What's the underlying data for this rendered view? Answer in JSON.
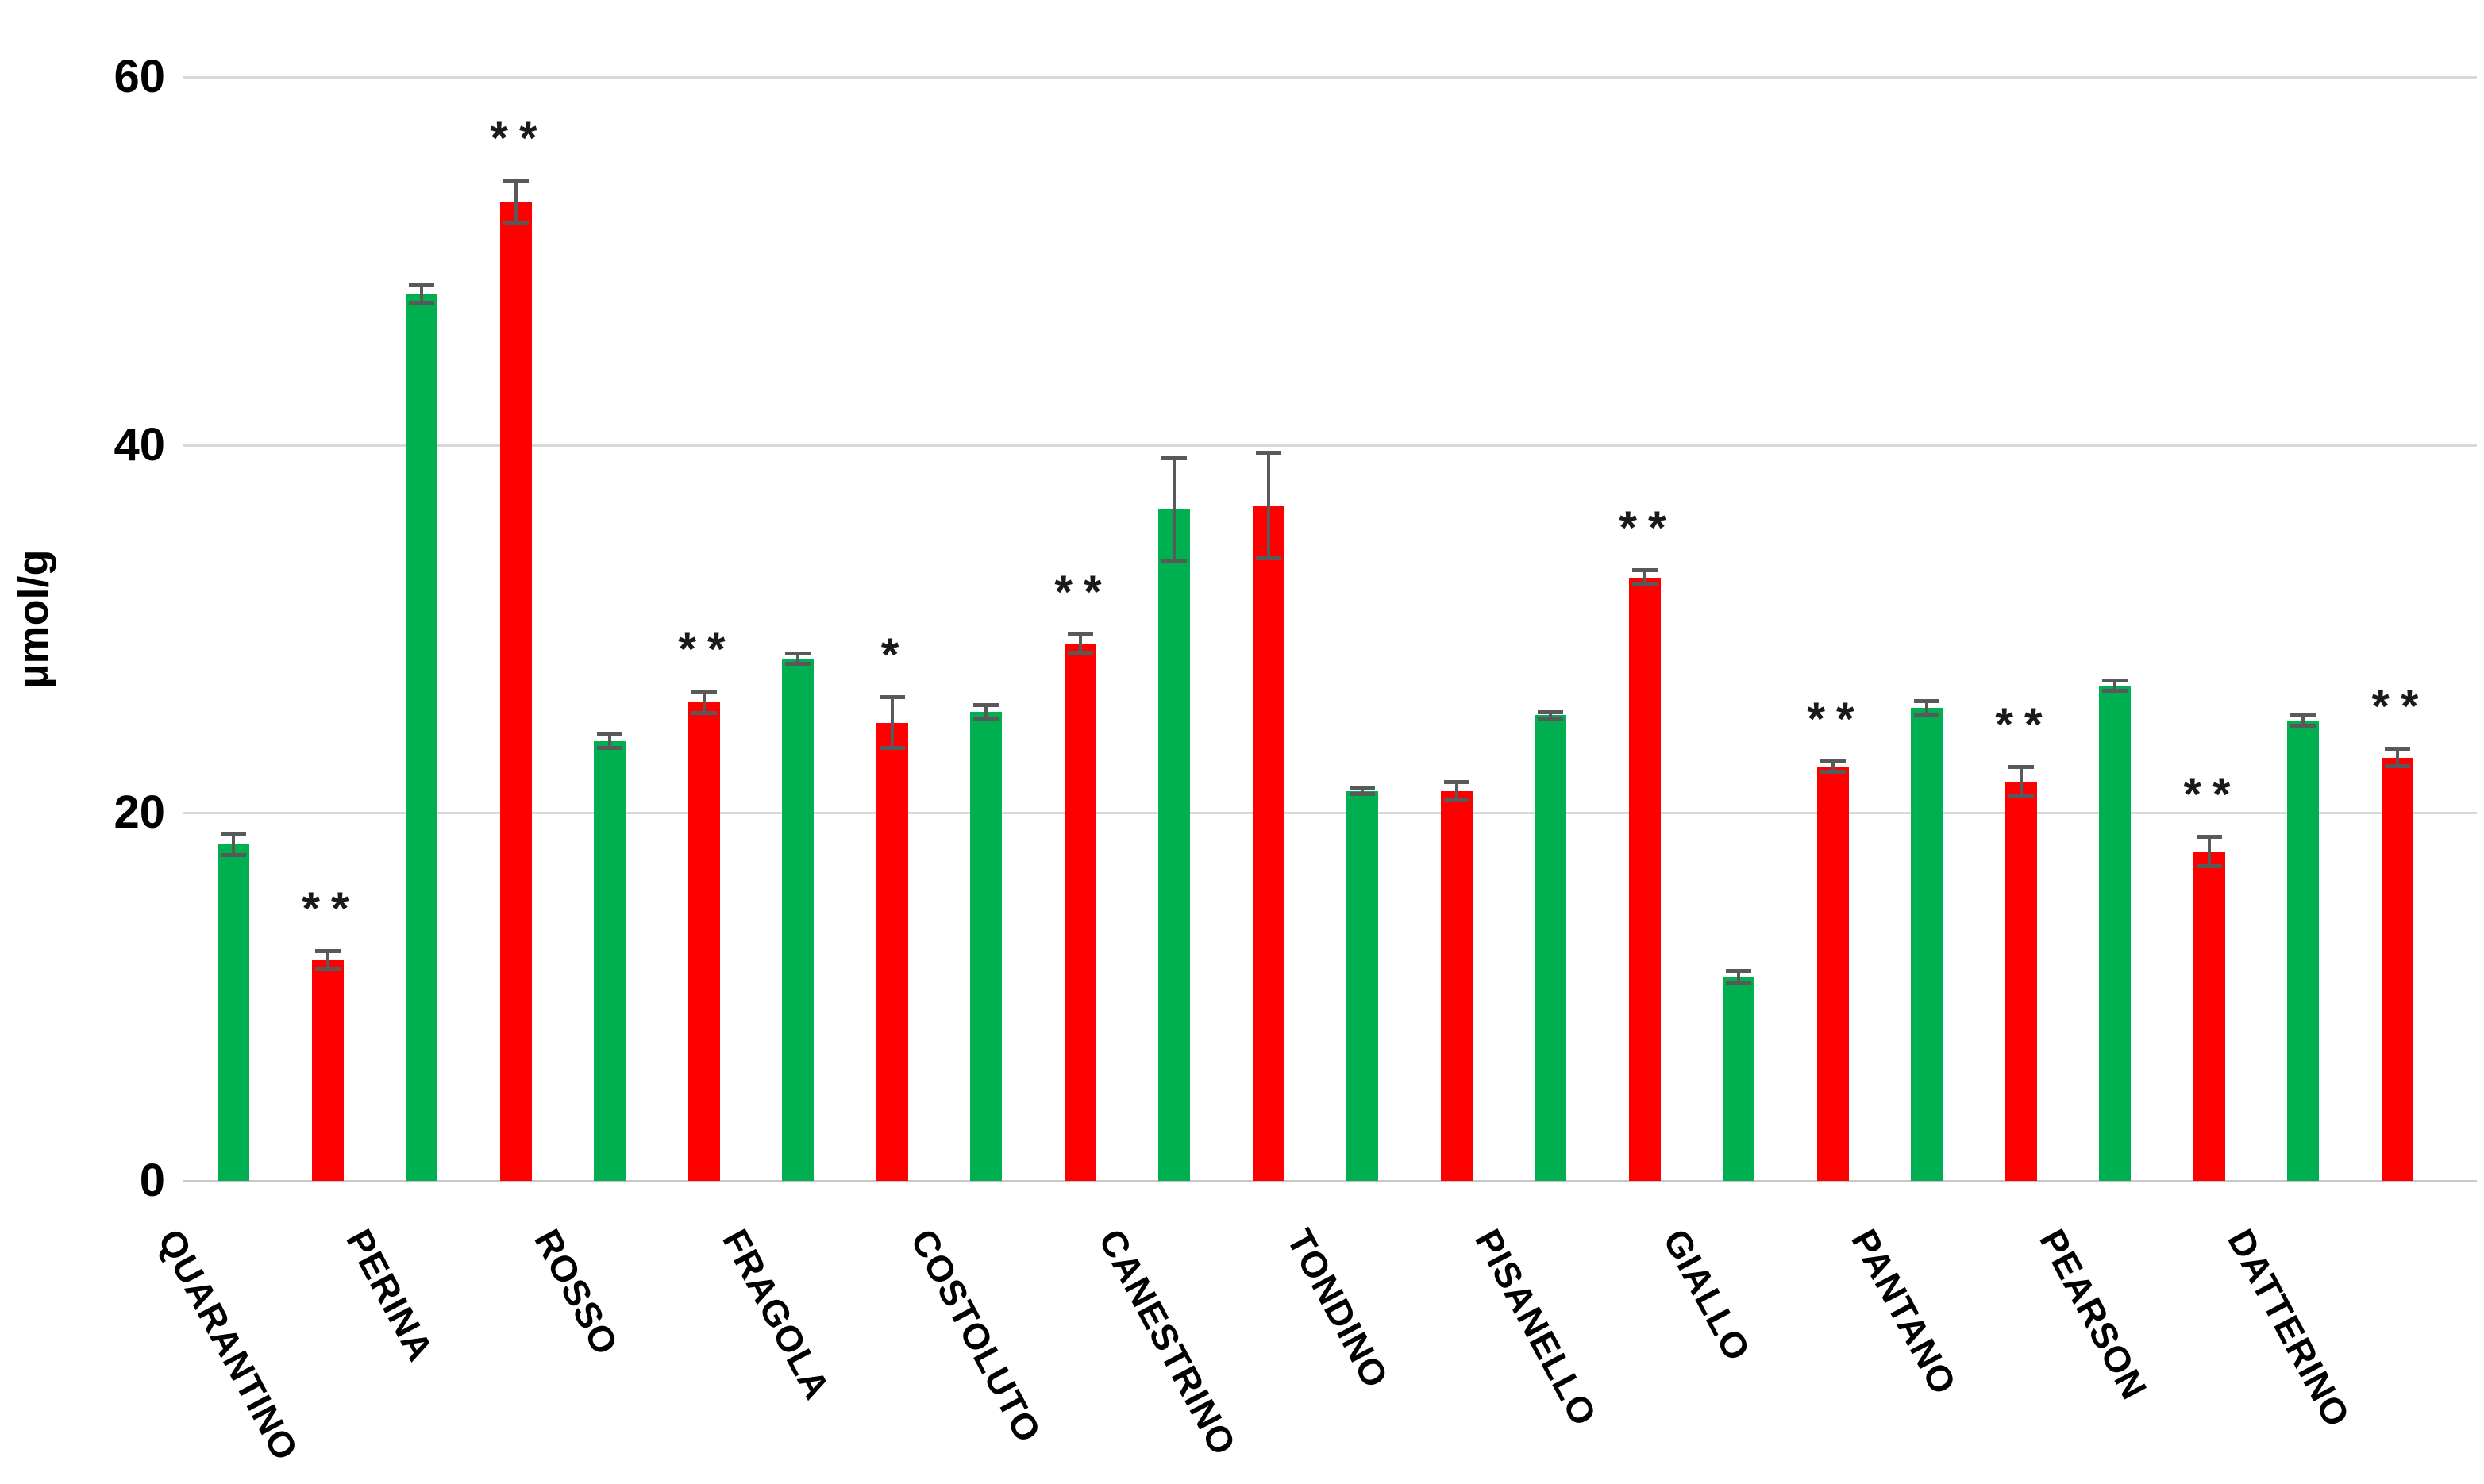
{
  "figure": {
    "background_color": "#FFFFFF"
  },
  "chart_data": {
    "type": "bar",
    "title": "",
    "xlabel": "",
    "ylabel": "µmol/g",
    "ylim": [
      0,
      60
    ],
    "yticks": [
      0,
      20,
      40,
      60
    ],
    "grid": "horizontal-light-gray",
    "legend_position": "none",
    "bar_colors_note": "paired bars per category: first green, second red",
    "categories": [
      "QUARANTINO",
      "PERINA",
      "ROSSO",
      "FRAGOLA",
      "COSTOLUTO",
      "CANESTRINO",
      "TONDINO",
      "PISANELLO",
      "GIALLO",
      "PANTANO",
      "PEARSON",
      "DATTERINO"
    ],
    "series": [
      {
        "name": "green",
        "color": "#00B050",
        "values": [
          18.3,
          48.2,
          23.9,
          28.4,
          25.5,
          36.5,
          21.2,
          25.3,
          11.1,
          25.7,
          26.9,
          25.0
        ],
        "errors": [
          0.6,
          0.5,
          0.4,
          0.3,
          0.4,
          2.8,
          0.2,
          0.2,
          0.35,
          0.4,
          0.3,
          0.3
        ]
      },
      {
        "name": "red",
        "color": "#FF0000",
        "values": [
          12.0,
          53.2,
          26.0,
          24.9,
          29.2,
          36.7,
          21.2,
          32.8,
          22.5,
          21.7,
          17.9,
          23.0
        ],
        "errors": [
          0.5,
          1.2,
          0.6,
          1.4,
          0.5,
          2.9,
          0.5,
          0.4,
          0.3,
          0.8,
          0.8,
          0.5
        ]
      }
    ],
    "significance": [
      "**",
      "**",
      "**",
      "*",
      "**",
      "",
      "",
      "**",
      "**",
      "**",
      "**",
      "**"
    ],
    "significance_above": "red bar",
    "error_bar_color": "#595959",
    "gridline_color": "#D9D9D9",
    "axis_text_color": "#000000"
  }
}
